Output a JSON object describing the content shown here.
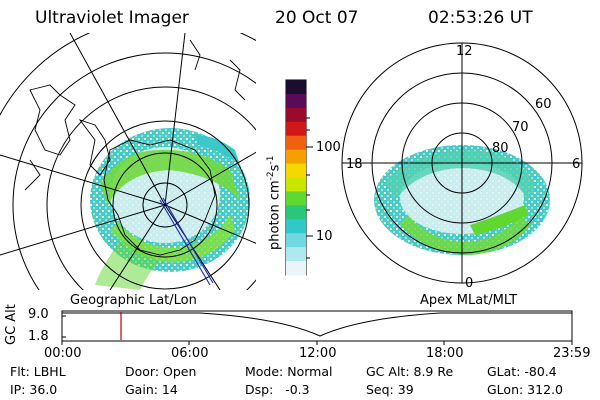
{
  "header": {
    "instrument": "Ultraviolet Imager",
    "date": "20 Oct 07",
    "time": "02:53:26 UT"
  },
  "colorbar": {
    "unit_label": "photon cm",
    "unit_sup1": "-2",
    "unit_s": "s",
    "unit_sup2": "-1",
    "tick_100": "100",
    "tick_10": "10",
    "colors": [
      "#1a0d2e",
      "#5a0a5a",
      "#9b0a2a",
      "#d01818",
      "#f06010",
      "#f5a000",
      "#f5d800",
      "#c8e600",
      "#5fd830",
      "#28c878",
      "#30c8c8",
      "#70d8e0",
      "#b0e8f0",
      "#e8f6fa"
    ]
  },
  "left_map": {
    "label": "Geographic Lat/Lon"
  },
  "right_map": {
    "label": "Apex MLat/MLT",
    "mlt_12": "12",
    "mlt_18": "18",
    "mlt_6": "6",
    "mlt_0": "0",
    "lat_60": "60",
    "lat_70": "70",
    "lat_80": "80"
  },
  "altitude_plot": {
    "axis_label": "GC Alt",
    "tick_high": "9.0",
    "tick_low": "1.8",
    "times": [
      "00:00",
      "06:00",
      "12:00",
      "18:00",
      "23:59"
    ]
  },
  "footer": {
    "flt": "Flt: LBHL",
    "ip": "IP: 36.0",
    "door": "Door: Open",
    "gain": "Gain: 14",
    "mode": "Mode: Normal",
    "dsp": "Dsp:   -0.3",
    "gc_alt": "GC Alt: 8.9 Re",
    "seq": "Seq: 39",
    "glat": "GLat: -80.4",
    "glon": "GLon: 312.0"
  }
}
